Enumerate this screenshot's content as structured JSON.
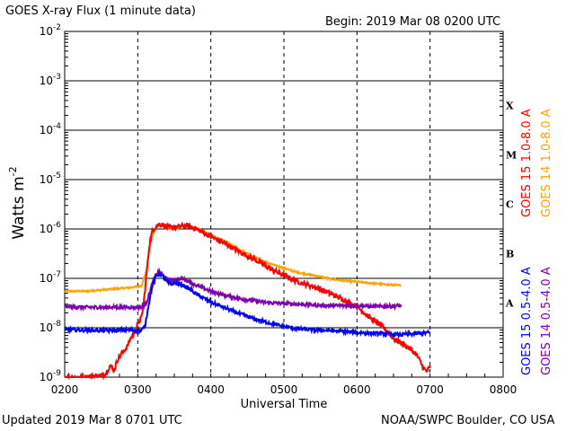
{
  "header": {
    "title": "GOES X-ray Flux (1 minute data)",
    "begin": "Begin: 2019 Mar 08 0200 UTC"
  },
  "footer": {
    "updated": "Updated 2019 Mar  8 0701 UTC",
    "credit": "NOAA/SWPC Boulder, CO USA"
  },
  "colors": {
    "goes15_long": "#ff0000",
    "goes14_long": "#ffa500",
    "goes15_short": "#0000ff",
    "goes14_short": "#7f00b0"
  },
  "chart_data": {
    "type": "line",
    "title": "GOES X-ray Flux (1 minute data)",
    "xlabel": "Universal Time",
    "ylabel": "Watts m",
    "ylabel_sup": "-2",
    "x_unit": "hours UTC",
    "xlim": [
      2,
      8
    ],
    "ylim": [
      1e-09,
      0.01
    ],
    "y_scale": "log",
    "grid": true,
    "x_ticks": [
      {
        "value": 2,
        "label": "0200"
      },
      {
        "value": 3,
        "label": "0300"
      },
      {
        "value": 4,
        "label": "0400"
      },
      {
        "value": 5,
        "label": "0500"
      },
      {
        "value": 6,
        "label": "0600"
      },
      {
        "value": 7,
        "label": "0700"
      },
      {
        "value": 8,
        "label": "0800"
      }
    ],
    "y_ticks": [
      {
        "exp": -2,
        "base": "10",
        "sup": "-2"
      },
      {
        "exp": -3,
        "base": "10",
        "sup": "-3"
      },
      {
        "exp": -4,
        "base": "10",
        "sup": "-4"
      },
      {
        "exp": -5,
        "base": "10",
        "sup": "-5"
      },
      {
        "exp": -6,
        "base": "10",
        "sup": "-6"
      },
      {
        "exp": -7,
        "base": "10",
        "sup": "-7"
      },
      {
        "exp": -8,
        "base": "10",
        "sup": "-8"
      },
      {
        "exp": -9,
        "base": "10",
        "sup": "-9"
      }
    ],
    "flare_classes": [
      {
        "label": "X",
        "exp": -3.5
      },
      {
        "label": "M",
        "exp": -4.5
      },
      {
        "label": "C",
        "exp": -5.5
      },
      {
        "label": "B",
        "exp": -6.5
      },
      {
        "label": "A",
        "exp": -7.5
      }
    ],
    "legend_right": [
      {
        "name": "GOES 15 1.0-8.0 A",
        "color": "#ff0000"
      },
      {
        "name": "GOES 14 1.0-8.0 A",
        "color": "#ffa500"
      }
    ],
    "legend_left": [
      {
        "name": "GOES 15 0.5-4.0 A",
        "color": "#0000ff"
      },
      {
        "name": "GOES 14 0.5-4.0 A",
        "color": "#7f00b0"
      }
    ],
    "series": [
      {
        "name": "GOES 14 1.0-8.0 A",
        "color": "#ffa500",
        "x": [
          2.0,
          2.3,
          2.6,
          2.9,
          3.05,
          3.12,
          3.18,
          3.25,
          3.3,
          3.4,
          3.5,
          3.6,
          3.7,
          3.8,
          4.0,
          4.2,
          4.4,
          4.6,
          4.8,
          5.0,
          5.2,
          5.4,
          5.6,
          5.8,
          6.0,
          6.2,
          6.4,
          6.6
        ],
        "y": [
          5.5e-08,
          5.5e-08,
          6e-08,
          6.5e-08,
          7e-08,
          1.5e-07,
          6e-07,
          1.1e-06,
          1.2e-06,
          1.1e-06,
          1e-06,
          1.15e-06,
          1.2e-06,
          1.05e-06,
          7.5e-07,
          5.5e-07,
          3.8e-07,
          2.7e-07,
          2e-07,
          1.6e-07,
          1.3e-07,
          1.15e-07,
          1e-07,
          9e-08,
          8.5e-08,
          8e-08,
          7.5e-08,
          7.2e-08
        ]
      },
      {
        "name": "GOES 15 1.0-8.0 A",
        "color": "#ff0000",
        "x": [
          2.0,
          2.3,
          2.55,
          2.62,
          2.68,
          2.72,
          2.78,
          2.85,
          2.9,
          2.95,
          3.0,
          3.05,
          3.08,
          3.12,
          3.16,
          3.2,
          3.25,
          3.3,
          3.35,
          3.4,
          3.5,
          3.6,
          3.7,
          3.8,
          4.0,
          4.2,
          4.4,
          4.6,
          4.8,
          5.0,
          5.2,
          5.4,
          5.6,
          5.8,
          6.0,
          6.1,
          6.2,
          6.3,
          6.4,
          6.5,
          6.6,
          6.7,
          6.8,
          6.85,
          6.9,
          6.95,
          7.0
        ],
        "y": [
          1e-09,
          1e-09,
          1.1e-09,
          1.7e-09,
          1.4e-09,
          2.2e-09,
          3e-09,
          4e-09,
          6e-09,
          8e-09,
          1.2e-08,
          1.6e-08,
          3e-08,
          1.2e-07,
          5e-07,
          9e-07,
          1.15e-06,
          1.25e-06,
          1.2e-06,
          1.1e-06,
          1.05e-06,
          1.15e-06,
          1.15e-06,
          1e-06,
          7e-07,
          5e-07,
          3.4e-07,
          2.4e-07,
          1.6e-07,
          1.15e-07,
          8.5e-08,
          6.8e-08,
          5.2e-08,
          3.8e-08,
          2.7e-08,
          2e-08,
          1.5e-08,
          1.2e-08,
          9e-09,
          6e-09,
          5e-09,
          4e-09,
          3e-09,
          2.3e-09,
          1.6e-09,
          1.3e-09,
          1.6e-09
        ]
      },
      {
        "name": "GOES 14 0.5-4.0 A",
        "color": "#7f00b0",
        "x": [
          2.0,
          2.3,
          2.6,
          2.9,
          3.05,
          3.12,
          3.2,
          3.25,
          3.3,
          3.35,
          3.4,
          3.45,
          3.5,
          3.6,
          3.7,
          3.8,
          4.0,
          4.2,
          4.4,
          4.6,
          4.8,
          5.0,
          5.2,
          5.4,
          5.6,
          5.8,
          6.0,
          6.2,
          6.4,
          6.6
        ],
        "y": [
          2.7e-08,
          2.6e-08,
          2.6e-08,
          2.6e-08,
          2.6e-08,
          3.2e-08,
          8e-08,
          1.2e-07,
          1.35e-07,
          1.15e-07,
          9.5e-08,
          8.8e-08,
          9.5e-08,
          9.8e-08,
          8.8e-08,
          7.2e-08,
          5.5e-08,
          4.5e-08,
          3.9e-08,
          3.5e-08,
          3.2e-08,
          3.1e-08,
          3e-08,
          2.9e-08,
          2.8e-08,
          2.8e-08,
          2.8e-08,
          2.7e-08,
          2.7e-08,
          2.8e-08
        ]
      },
      {
        "name": "GOES 15 0.5-4.0 A",
        "color": "#0000ff",
        "x": [
          2.0,
          2.3,
          2.6,
          2.9,
          3.05,
          3.1,
          3.15,
          3.2,
          3.25,
          3.3,
          3.35,
          3.4,
          3.45,
          3.5,
          3.6,
          3.7,
          3.8,
          4.0,
          4.2,
          4.4,
          4.6,
          4.8,
          5.0,
          5.2,
          5.4,
          5.6,
          5.8,
          6.0,
          6.2,
          6.4,
          6.6,
          6.8,
          7.0
        ],
        "y": [
          9.2e-09,
          8.9e-09,
          8.8e-09,
          9e-09,
          8.7e-09,
          1.1e-08,
          3e-08,
          7e-08,
          1.1e-07,
          1.25e-07,
          1.05e-07,
          8.5e-08,
          7.5e-08,
          8e-08,
          7.5e-08,
          6.2e-08,
          4.8e-08,
          3.3e-08,
          2.5e-08,
          1.9e-08,
          1.5e-08,
          1.25e-08,
          1.05e-08,
          9.5e-09,
          9e-09,
          8.8e-09,
          8.5e-09,
          8e-09,
          7.7e-09,
          7.5e-09,
          7.2e-09,
          7.6e-09,
          8e-09
        ]
      }
    ]
  }
}
